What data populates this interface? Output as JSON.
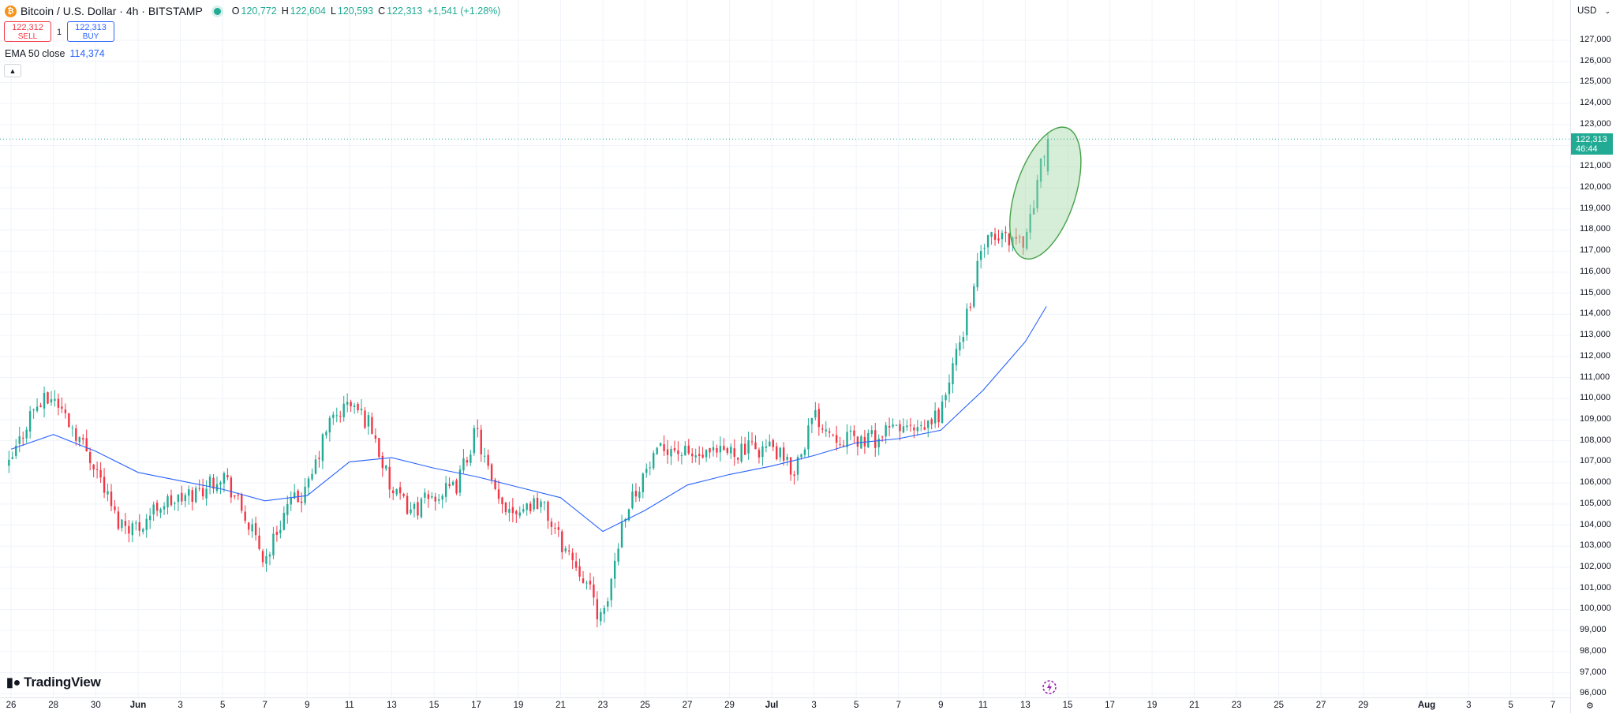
{
  "header": {
    "symbol": "Bitcoin / U.S. Dollar · 4h · BITSTAMP",
    "ohlc": {
      "o_label": "O",
      "o": "120,772",
      "h_label": "H",
      "h": "122,604",
      "l_label": "L",
      "l": "120,593",
      "c_label": "C",
      "c": "122,313",
      "change": "+1,541 (+1.28%)"
    },
    "market_status": "live"
  },
  "trade": {
    "sell_price": "122,312",
    "sell_label": "SELL",
    "quantity": "1",
    "buy_price": "122,313",
    "buy_label": "BUY"
  },
  "indicator": {
    "name": "EMA 50 close",
    "value": "114,374"
  },
  "branding": {
    "name": "TradingView"
  },
  "price_axis": {
    "currency": "USD",
    "ticks": [
      "127,000",
      "126,000",
      "125,000",
      "124,000",
      "123,000",
      "121,000",
      "120,000",
      "119,000",
      "118,000",
      "117,000",
      "116,000",
      "115,000",
      "114,000",
      "113,000",
      "112,000",
      "111,000",
      "110,000",
      "109,000",
      "108,000",
      "107,000",
      "106,000",
      "105,000",
      "104,000",
      "103,000",
      "102,000",
      "101,000",
      "100,000",
      "99,000",
      "98,000",
      "97,000",
      "96,000"
    ],
    "last_price": "122,313",
    "countdown": "46:44"
  },
  "time_axis": {
    "labels": [
      "26",
      "28",
      "30",
      "Jun",
      "3",
      "5",
      "7",
      "9",
      "11",
      "13",
      "15",
      "17",
      "19",
      "21",
      "23",
      "25",
      "27",
      "29",
      "Jul",
      "3",
      "5",
      "7",
      "9",
      "11",
      "13",
      "15",
      "17",
      "19",
      "21",
      "23",
      "25",
      "27",
      "29",
      "Aug",
      "3",
      "5",
      "7"
    ]
  },
  "colors": {
    "up": "#22ab94",
    "down": "#f23645",
    "ema": "#2962ff",
    "highlight_fill": "#a5d6a7",
    "highlight_stroke": "#43a047"
  },
  "chart_data": {
    "type": "candlestick",
    "timeframe": "4h",
    "ylim": [
      96000,
      127500
    ],
    "grid": true,
    "ema_series": {
      "name": "EMA 50 close",
      "points": [
        [
          "May 26",
          107600
        ],
        [
          "May 28",
          108300
        ],
        [
          "May 30",
          107500
        ],
        [
          "Jun 1",
          106500
        ],
        [
          "Jun 3",
          106100
        ],
        [
          "Jun 5",
          105700
        ],
        [
          "Jun 7",
          105150
        ],
        [
          "Jun 9",
          105400
        ],
        [
          "Jun 11",
          107000
        ],
        [
          "Jun 13",
          107200
        ],
        [
          "Jun 15",
          106700
        ],
        [
          "Jun 17",
          106300
        ],
        [
          "Jun 19",
          105800
        ],
        [
          "Jun 21",
          105300
        ],
        [
          "Jun 23",
          103700
        ],
        [
          "Jun 25",
          104700
        ],
        [
          "Jun 27",
          105900
        ],
        [
          "Jun 29",
          106400
        ],
        [
          "Jul 1",
          106800
        ],
        [
          "Jul 3",
          107300
        ],
        [
          "Jul 5",
          107900
        ],
        [
          "Jul 7",
          108100
        ],
        [
          "Jul 9",
          108500
        ],
        [
          "Jul 11",
          110400
        ],
        [
          "Jul 13",
          112700
        ],
        [
          "Jul 14",
          114374
        ]
      ]
    },
    "price_path": [
      [
        "May 26",
        107000
      ],
      [
        "May 27",
        109500
      ],
      [
        "May 28",
        110100
      ],
      [
        "May 29",
        108500
      ],
      [
        "May 30",
        106800
      ],
      [
        "May 31",
        104200
      ],
      [
        "Jun 1",
        103900
      ],
      [
        "Jun 2",
        105000
      ],
      [
        "Jun 3",
        105200
      ],
      [
        "Jun 4",
        105700
      ],
      [
        "Jun 5",
        106500
      ],
      [
        "Jun 6",
        104500
      ],
      [
        "Jun 7",
        102300
      ],
      [
        "Jun 8",
        104800
      ],
      [
        "Jun 9",
        105600
      ],
      [
        "Jun 10",
        108800
      ],
      [
        "Jun 11",
        109800
      ],
      [
        "Jun 12",
        108800
      ],
      [
        "Jun 13",
        105500
      ],
      [
        "Jun 14",
        104700
      ],
      [
        "Jun 15",
        105400
      ],
      [
        "Jun 16",
        105700
      ],
      [
        "Jun 17",
        108500
      ],
      [
        "Jun 18",
        105000
      ],
      [
        "Jun 19",
        104800
      ],
      [
        "Jun 20",
        105200
      ],
      [
        "Jun 21",
        103200
      ],
      [
        "Jun 22",
        101800
      ],
      [
        "Jun 23",
        99300
      ],
      [
        "Jun 24",
        104600
      ],
      [
        "Jun 25",
        106500
      ],
      [
        "Jun 26",
        107800
      ],
      [
        "Jun 27",
        107300
      ],
      [
        "Jun 28",
        107200
      ],
      [
        "Jun 29",
        107500
      ],
      [
        "Jul 1",
        107700
      ],
      [
        "Jul 2",
        106500
      ],
      [
        "Jul 3",
        109200
      ],
      [
        "Jul 4",
        108300
      ],
      [
        "Jul 5",
        108000
      ],
      [
        "Jul 6",
        108100
      ],
      [
        "Jul 7",
        108700
      ],
      [
        "Jul 8",
        108300
      ],
      [
        "Jul 9",
        109400
      ],
      [
        "Jul 10",
        113000
      ],
      [
        "Jul 11",
        117300
      ],
      [
        "Jul 12",
        117700
      ],
      [
        "Jul 13",
        117500
      ],
      [
        "Jul 14",
        122313
      ]
    ],
    "annotation": {
      "type": "ellipse",
      "around": "Jul 13 – Jul 14 breakout to 122,604"
    }
  }
}
